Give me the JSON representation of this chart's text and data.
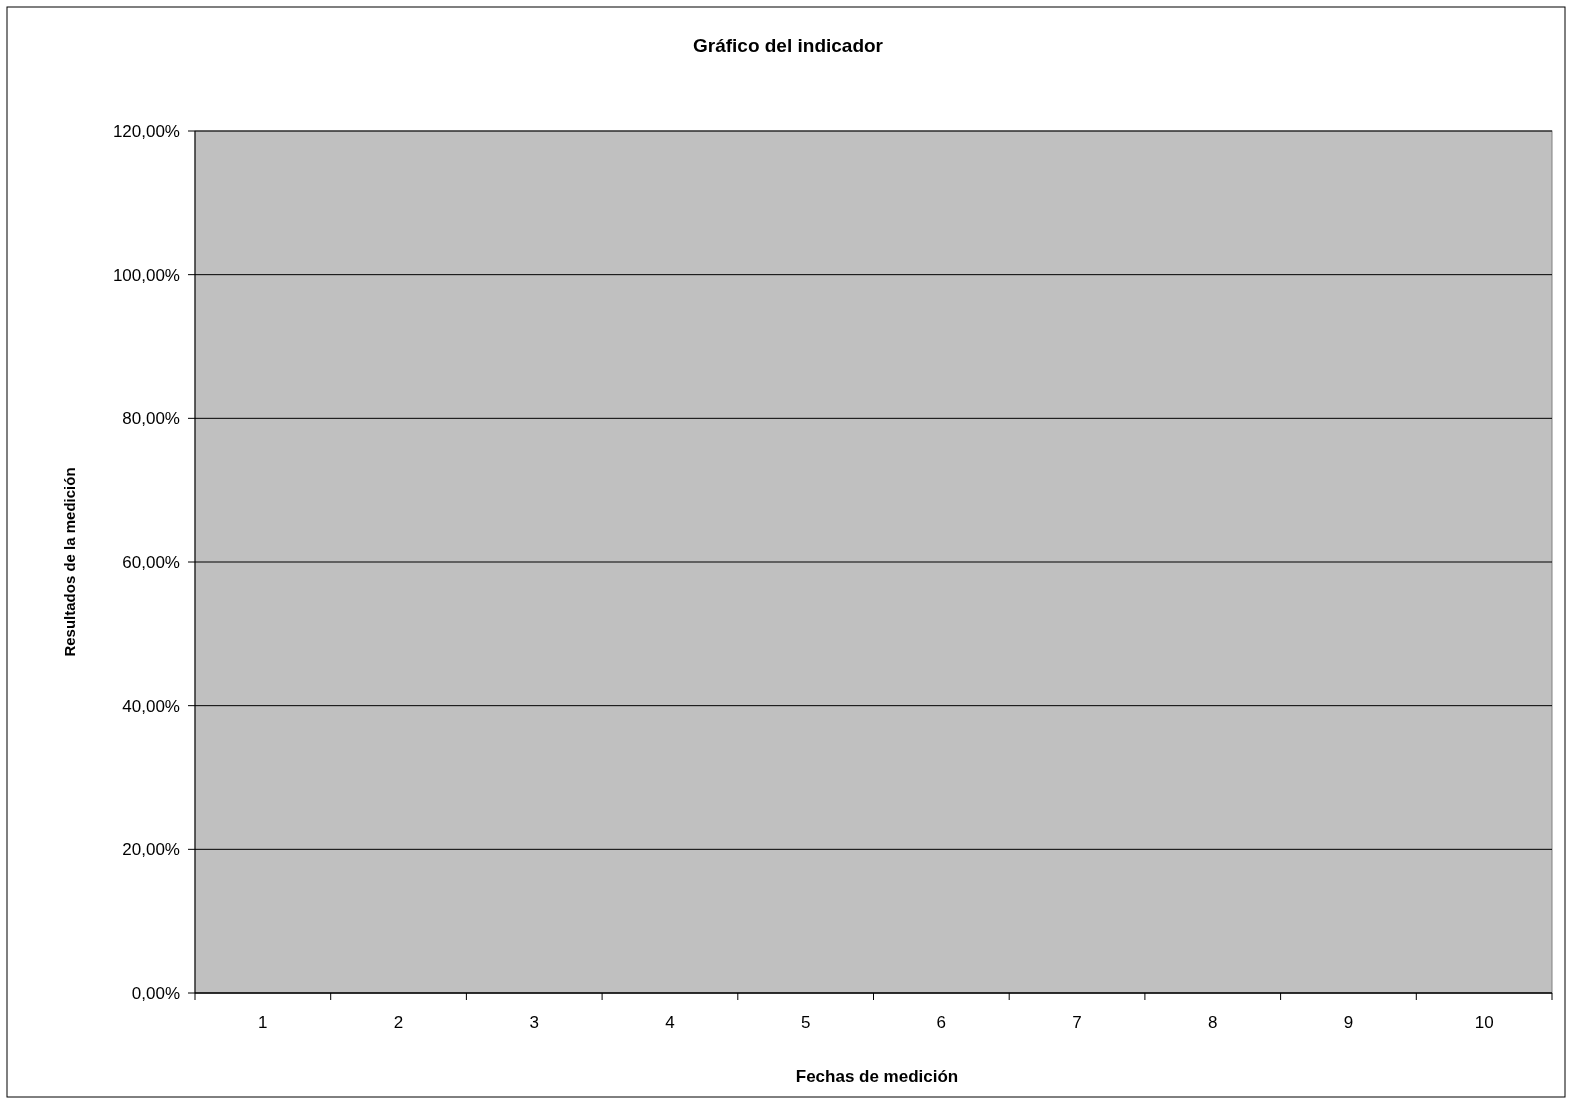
{
  "chart_data": {
    "type": "bar",
    "title": "Gráfico del indicador",
    "xlabel": "Fechas de medición",
    "ylabel": "Resultados de la medición",
    "categories": [
      "1",
      "2",
      "3",
      "4",
      "5",
      "6",
      "7",
      "8",
      "9",
      "10"
    ],
    "values": [
      null,
      null,
      null,
      null,
      null,
      null,
      null,
      null,
      null,
      null
    ],
    "ylim": [
      0,
      120
    ],
    "yticks": [
      {
        "value": 0,
        "label": "0,00%"
      },
      {
        "value": 20,
        "label": "20,00%"
      },
      {
        "value": 40,
        "label": "40,00%"
      },
      {
        "value": 60,
        "label": "60,00%"
      },
      {
        "value": 80,
        "label": "80,00%"
      },
      {
        "value": 100,
        "label": "100,00%"
      },
      {
        "value": 120,
        "label": "120,00%"
      }
    ],
    "grid": "y"
  }
}
